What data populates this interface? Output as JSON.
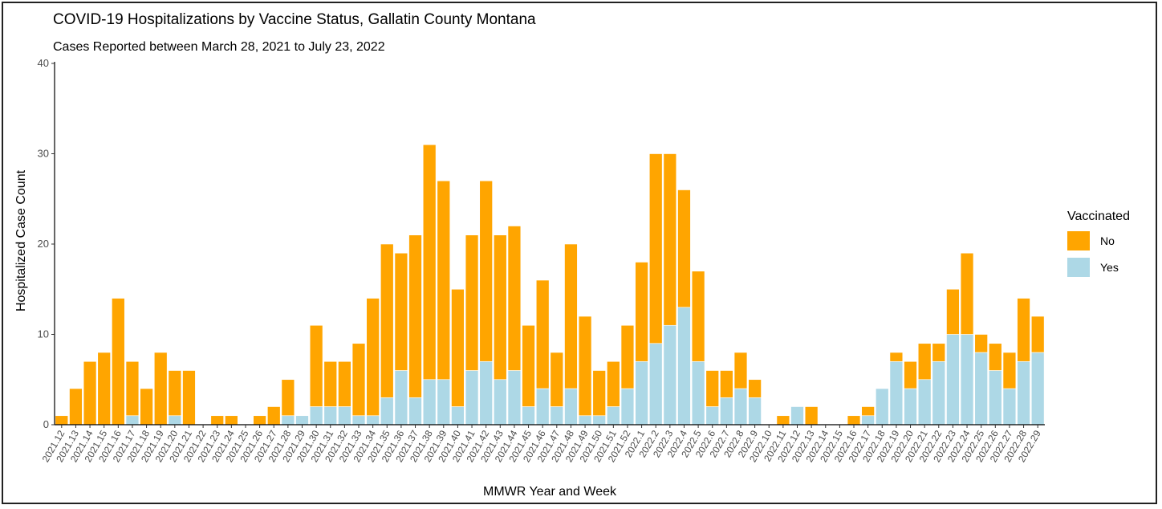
{
  "chart_data": {
    "type": "bar",
    "stacked": true,
    "title": "COVID-19 Hospitalizations by Vaccine Status, Gallatin County Montana",
    "subtitle": "Cases Reported between March 28, 2021 to July 23, 2022",
    "xlabel": "MMWR Year and Week",
    "ylabel": "Hospitalized Case Count",
    "ylim": [
      0,
      40
    ],
    "yticks": [
      "0",
      "10",
      "20",
      "30",
      "40"
    ],
    "grid": false,
    "legend": {
      "title": "Vaccinated",
      "position": "right"
    },
    "categories": [
      "2021.12",
      "2021.13",
      "2021.14",
      "2021.15",
      "2021.16",
      "2021.17",
      "2021.18",
      "2021.19",
      "2021.20",
      "2021.21",
      "2021.22",
      "2021.23",
      "2021.24",
      "2021.25",
      "2021.26",
      "2021.27",
      "2021.28",
      "2021.29",
      "2021.30",
      "2021.31",
      "2021.32",
      "2021.33",
      "2021.34",
      "2021.35",
      "2021.36",
      "2021.37",
      "2021.38",
      "2021.39",
      "2021.40",
      "2021.41",
      "2021.42",
      "2021.43",
      "2021.44",
      "2021.45",
      "2021.46",
      "2021.47",
      "2021.48",
      "2021.49",
      "2021.50",
      "2021.51",
      "2021.52",
      "2022.1",
      "2022.2",
      "2022.3",
      "2022.4",
      "2022.5",
      "2022.6",
      "2022.7",
      "2022.8",
      "2022.9",
      "2022.10",
      "2022.11",
      "2022.12",
      "2022.13",
      "2022.14",
      "2022.15",
      "2022.16",
      "2022.17",
      "2022.18",
      "2022.19",
      "2022.20",
      "2022.21",
      "2022.22",
      "2022.23",
      "2022.24",
      "2022.25",
      "2022.26",
      "2022.27",
      "2022.28",
      "2022.29"
    ],
    "series": [
      {
        "name": "No",
        "color": "#FFA500",
        "values": [
          1,
          4,
          7,
          8,
          14,
          6,
          4,
          8,
          5,
          6,
          0,
          1,
          1,
          0,
          1,
          2,
          4,
          0,
          9,
          5,
          5,
          8,
          13,
          17,
          13,
          18,
          26,
          22,
          13,
          15,
          20,
          16,
          16,
          9,
          12,
          6,
          16,
          11,
          5,
          5,
          7,
          11,
          21,
          19,
          13,
          10,
          4,
          3,
          4,
          2,
          0,
          1,
          0,
          2,
          0,
          0,
          1,
          1,
          0,
          1,
          3,
          4,
          2,
          5,
          9,
          2,
          3,
          4,
          7,
          4
        ]
      },
      {
        "name": "Yes",
        "color": "#ADD8E6",
        "values": [
          0,
          0,
          0,
          0,
          0,
          1,
          0,
          0,
          1,
          0,
          0,
          0,
          0,
          0,
          0,
          0,
          1,
          1,
          2,
          2,
          2,
          1,
          1,
          3,
          6,
          3,
          5,
          5,
          2,
          6,
          7,
          5,
          6,
          2,
          4,
          2,
          4,
          1,
          1,
          2,
          4,
          7,
          9,
          11,
          13,
          7,
          2,
          3,
          4,
          3,
          0,
          0,
          2,
          0,
          0,
          0,
          0,
          1,
          4,
          7,
          4,
          5,
          7,
          10,
          10,
          8,
          6,
          4,
          7,
          8
        ]
      }
    ]
  }
}
